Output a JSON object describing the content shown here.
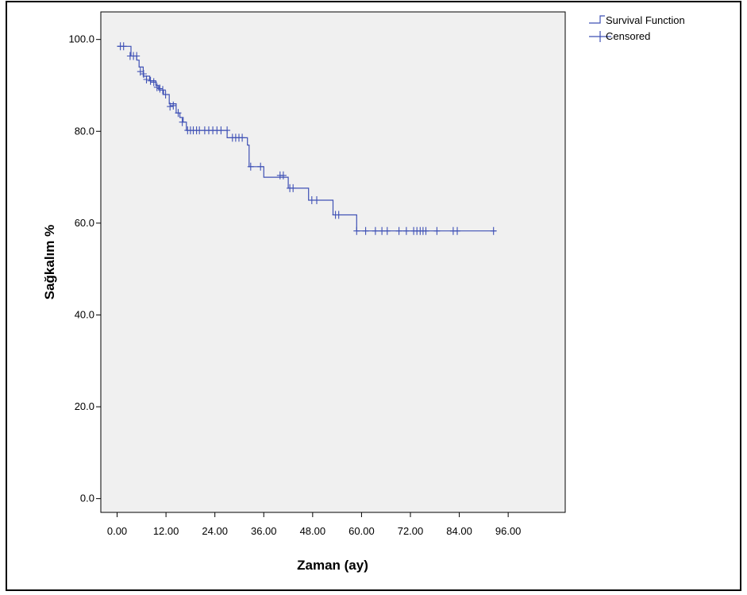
{
  "chart_data": {
    "type": "line",
    "subtype": "kaplan-meier",
    "title": "",
    "xlabel": "Zaman (ay)",
    "ylabel": "Sağkalım %",
    "xlim": [
      -4,
      110
    ],
    "ylim": [
      -3,
      106
    ],
    "x_ticks": [
      0,
      12,
      24,
      36,
      48,
      60,
      72,
      84,
      96
    ],
    "x_tick_labels": [
      "0.00",
      "12.00",
      "24.00",
      "36.00",
      "48.00",
      "60.00",
      "72.00",
      "84.00",
      "96.00"
    ],
    "y_ticks": [
      0,
      20,
      40,
      60,
      80,
      100
    ],
    "y_tick_labels": [
      "0.0",
      "20.0",
      "40.0",
      "60.0",
      "80.0",
      "100.0"
    ],
    "grid": false,
    "legend_position": "top-right, outside plot",
    "plot_background": "#f0f0f0",
    "series_color": "#3f51b5",
    "legend": [
      {
        "label": "Survival Function",
        "marker": "step"
      },
      {
        "label": "Censored",
        "marker": "plus"
      }
    ],
    "series": [
      {
        "kind": "survival-step",
        "x": [
          0,
          3.4,
          4.8,
          5.4,
          6.4,
          8,
          9.5,
          10.2,
          11.4,
          12.8,
          14.5,
          15.4,
          16.2,
          17,
          27,
          32,
          32.4,
          36,
          41,
          42,
          47,
          53,
          58.8,
          93
        ],
        "y": [
          98.5,
          96.4,
          95.5,
          94,
          92,
          91,
          90,
          89,
          88,
          86,
          84,
          83,
          82,
          80.2,
          78.6,
          77,
          72.3,
          70,
          70,
          67.6,
          65,
          61.8,
          58.3,
          58.3
        ]
      },
      {
        "kind": "censored",
        "x": [
          0.8,
          1.6,
          3.2,
          4.0,
          4.8,
          5.7,
          6.5,
          7.2,
          8.2,
          9.0,
          9.8,
          10.5,
          11.2,
          11.9,
          13.0,
          13.8,
          15.0,
          16.0,
          17.3,
          18.0,
          18.7,
          19.5,
          20.2,
          21.5,
          22.5,
          23.5,
          24.5,
          25.5,
          27.0,
          28.3,
          29.1,
          29.9,
          30.7,
          32.8,
          35.2,
          40.0,
          40.8,
          42.4,
          43.2,
          47.8,
          49.0,
          53.6,
          54.4,
          58.8,
          61.0,
          63.4,
          65.0,
          66.3,
          69.2,
          71.0,
          72.8,
          73.6,
          74.4,
          75.1,
          75.8,
          78.5,
          82.5,
          83.5,
          92.4
        ],
        "y": [
          98.5,
          98.5,
          96.4,
          96.4,
          96.4,
          93,
          92.5,
          91.3,
          91,
          90.7,
          89.6,
          89.3,
          89,
          88,
          85.4,
          85.6,
          84,
          82,
          80.2,
          80.2,
          80.2,
          80.2,
          80.2,
          80.2,
          80.2,
          80.2,
          80.2,
          80.2,
          80.2,
          78.6,
          78.6,
          78.6,
          78.6,
          72.3,
          72.3,
          70.4,
          70.4,
          67.6,
          67.6,
          65,
          65,
          61.8,
          61.8,
          58.3,
          58.3,
          58.3,
          58.3,
          58.3,
          58.3,
          58.3,
          58.3,
          58.3,
          58.3,
          58.3,
          58.3,
          58.3,
          58.3,
          58.3,
          58.3
        ]
      }
    ]
  }
}
